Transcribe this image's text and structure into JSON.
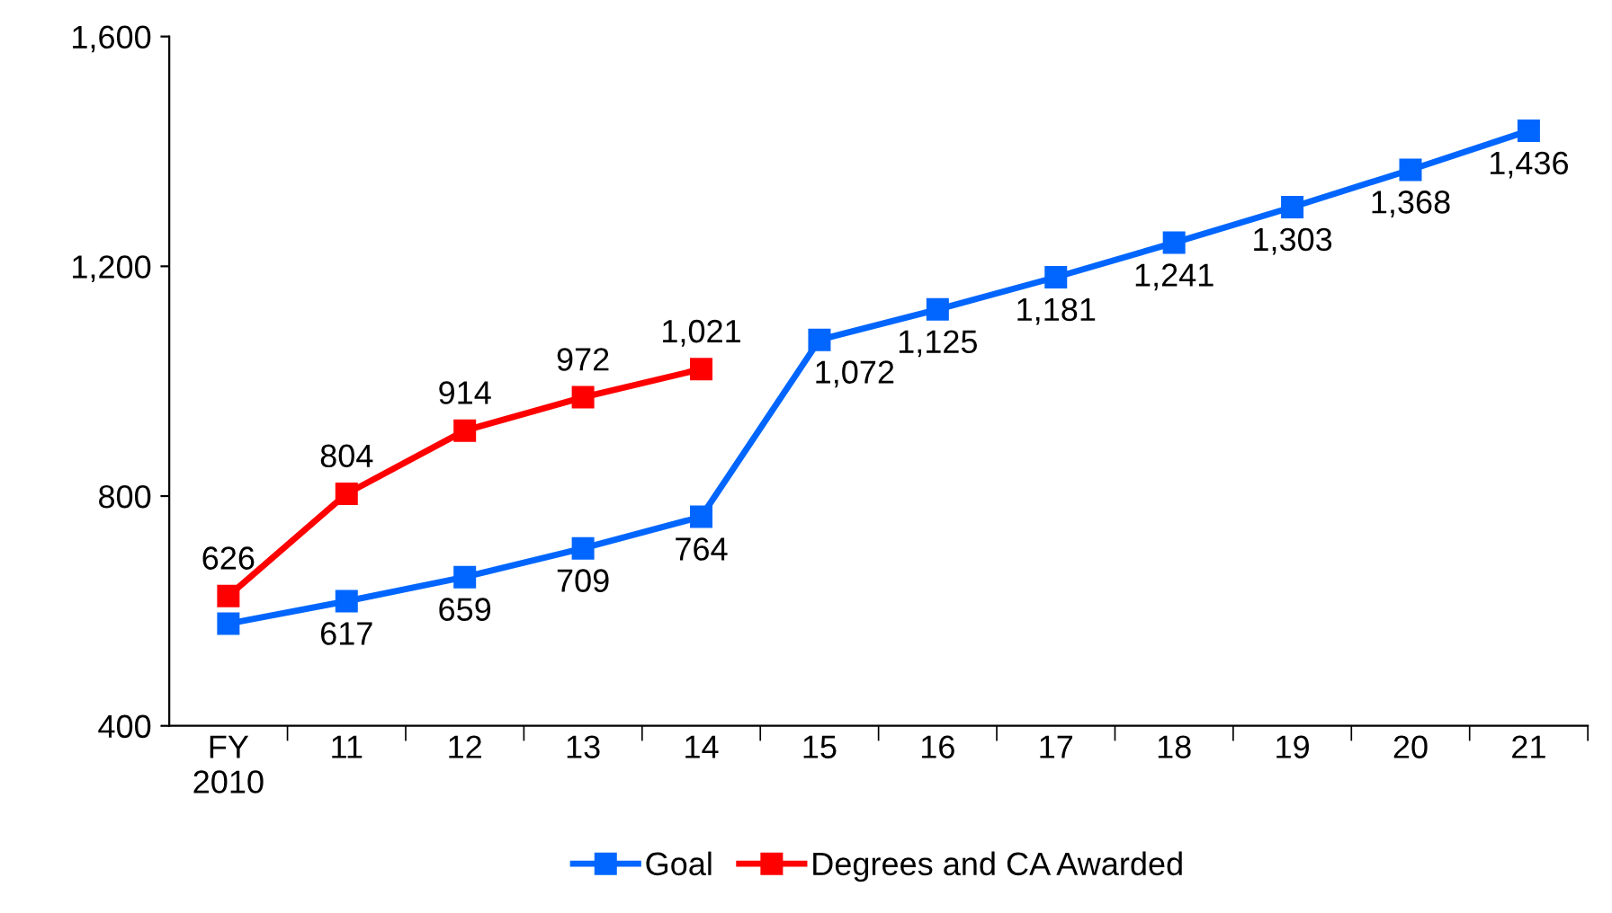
{
  "chart_data": {
    "type": "line",
    "categories": [
      "FY\n2010",
      "11",
      "12",
      "13",
      "14",
      "15",
      "16",
      "17",
      "18",
      "19",
      "20",
      "21"
    ],
    "series": [
      {
        "name": "Goal",
        "color": "#0066ff",
        "values": [
          578,
          617,
          659,
          709,
          764,
          1072,
          1125,
          1181,
          1241,
          1303,
          1368,
          1436
        ],
        "value_labels": [
          null,
          "617",
          "659",
          "709",
          "764",
          "1,072",
          "1,125",
          "1,181",
          "1,241",
          "1,303",
          "1,368",
          "1,436"
        ]
      },
      {
        "name": "Degrees and CA Awarded",
        "color": "#ff0000",
        "values": [
          626,
          804,
          914,
          972,
          1021,
          null,
          null,
          null,
          null,
          null,
          null,
          null
        ],
        "value_labels": [
          "626",
          "804",
          "914",
          "972",
          "1,021",
          null,
          null,
          null,
          null,
          null,
          null,
          null
        ]
      }
    ],
    "ylim": [
      400,
      1600
    ],
    "yticks": [
      400,
      800,
      {
        "value": 1200,
        "label": "1,200"
      },
      {
        "value": 1600,
        "label": "1,600"
      }
    ],
    "grid": false,
    "legend": "bottom",
    "marker": "square",
    "line_style": "solid"
  }
}
